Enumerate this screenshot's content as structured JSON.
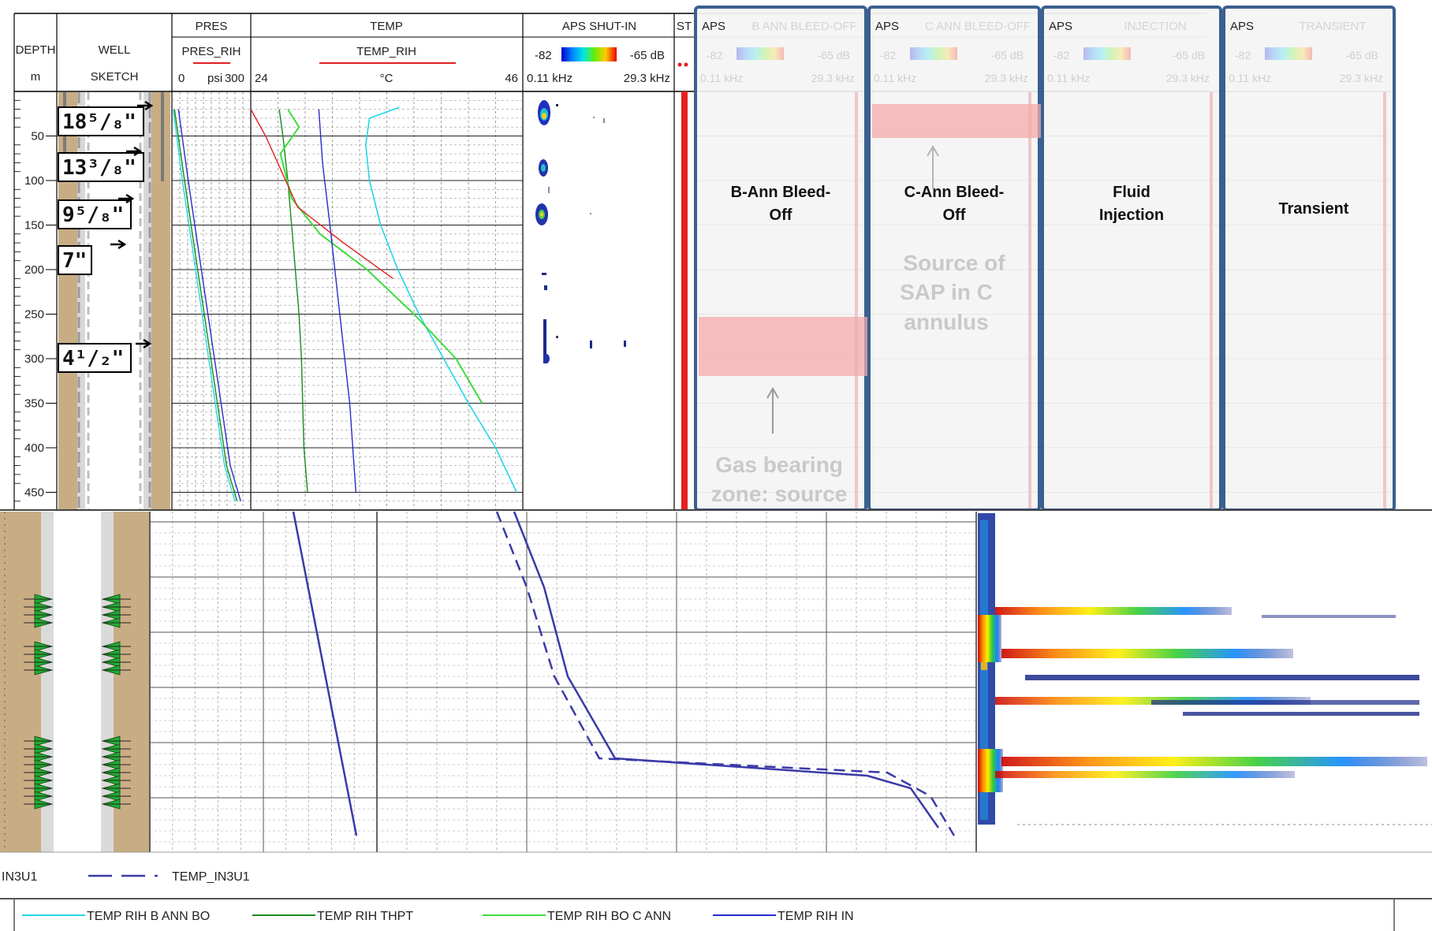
{
  "colors": {
    "cyan": "#22d6e6",
    "dark_green": "#1a8a1a",
    "bright_green": "#3ddc3d",
    "blue": "#2a2ad0",
    "navy": "#3a3aa8",
    "red": "#e02020",
    "overlay_border": "#3b5f8f",
    "sand": "#c8ad84"
  },
  "track_headers": {
    "depth": {
      "title": "DEPTH",
      "unit": "m"
    },
    "well": {
      "title": "WELL",
      "sub": "SKETCH"
    },
    "pres": {
      "title": "PRES",
      "curve": "PRES_RIH",
      "min": "0",
      "unit": "psi",
      "max": "300"
    },
    "temp": {
      "title": "TEMP",
      "curve": "TEMP_RIH",
      "min": "24",
      "unit": "°C",
      "max": "46"
    },
    "aps": {
      "title": "APS SHUT-IN",
      "db_min": "-82",
      "db_max": "-65 dB",
      "f_min": "0.11 kHz",
      "f_max": "29.3 kHz"
    },
    "st": {
      "title": "ST"
    }
  },
  "depth_ticks": [
    "50",
    "100",
    "150",
    "200",
    "250",
    "300",
    "350",
    "400",
    "450"
  ],
  "casings": [
    {
      "label": "18⁵/₈\""
    },
    {
      "label": "13³/₈\""
    },
    {
      "label": "9⁵/₈\""
    },
    {
      "label": "7\""
    },
    {
      "label": "4¹/₂\""
    }
  ],
  "overlays": [
    {
      "aps_label": "APS",
      "ghost_title": "B ANN BLEED-OFF",
      "title_line1": "B-Ann Bleed-",
      "title_line2": "Off",
      "faded_line1": "Gas bearing",
      "faded_line2": "zone: source"
    },
    {
      "aps_label": "APS",
      "ghost_title": "C ANN BLEED-OFF",
      "title_line1": "C-Ann Bleed-",
      "title_line2": "Off",
      "faded_line1": "Source of",
      "faded_line2": "SAP in C",
      "faded_line3": "annulus"
    },
    {
      "aps_label": "APS",
      "ghost_title": "INJECTION",
      "title_line1": "Fluid",
      "title_line2": "Injection"
    },
    {
      "aps_label": "APS",
      "ghost_title": "TRANSIENT",
      "title_line1": "Transient"
    }
  ],
  "ghost_scale": {
    "db_min": "-82",
    "db_max": "-65 dB",
    "f_min": "0.11 kHz",
    "f_max": "29.3 kHz"
  },
  "lower_legend_fragment": "IN3U1",
  "lower_legend_curve": "TEMP_IN3U1",
  "legend": [
    {
      "name": "TEMP RIH B ANN BO",
      "color": "#22d6e6"
    },
    {
      "name": "TEMP RIH THPT",
      "color": "#1a8a1a"
    },
    {
      "name": "TEMP RIH BO C ANN",
      "color": "#3ddc3d"
    },
    {
      "name": "TEMP RIH IN",
      "color": "#2a2ad0"
    }
  ],
  "chart_data": [
    {
      "type": "line",
      "title": "TEMP",
      "xlabel": "TEMP_RIH (°C)",
      "ylabel": "DEPTH (m)",
      "xlim": [
        24,
        46
      ],
      "ylim": [
        0,
        460
      ],
      "series": [
        {
          "name": "TEMP RIH B ANN BO",
          "x": [
            36.0,
            33.6,
            33.3,
            33.6,
            34.5,
            35.9,
            37.6,
            39.6,
            41.6,
            43.8,
            45.5
          ],
          "y": [
            18,
            30,
            60,
            100,
            150,
            200,
            250,
            300,
            350,
            400,
            450
          ]
        },
        {
          "name": "TEMP RIH THPT",
          "x": [
            26.3,
            26.6,
            27.0,
            27.3,
            27.6,
            27.9,
            28.1,
            28.3,
            28.6
          ],
          "y": [
            20,
            50,
            100,
            150,
            200,
            250,
            300,
            400,
            450
          ]
        },
        {
          "name": "TEMP RIH BO C ANN",
          "x": [
            27.0,
            27.9,
            26.4,
            27.3,
            29.6,
            33.4,
            37.2,
            40.6,
            42.7
          ],
          "y": [
            20,
            40,
            70,
            120,
            160,
            200,
            250,
            300,
            350
          ]
        },
        {
          "name": "TEMP RIH IN",
          "x": [
            29.5,
            29.8,
            30.4,
            31.2,
            32.0,
            32.5
          ],
          "y": [
            20,
            80,
            150,
            250,
            350,
            450
          ]
        },
        {
          "name": "TEMP_RIH",
          "x": [
            24.0,
            25.2,
            26.5,
            27.8,
            31.5,
            35.5
          ],
          "y": [
            20,
            50,
            90,
            130,
            170,
            210
          ]
        }
      ]
    },
    {
      "type": "line",
      "title": "PRES",
      "xlabel": "PRES_RIH (psi)",
      "ylabel": "DEPTH (m)",
      "xlim": [
        0,
        300
      ],
      "ylim": [
        0,
        460
      ],
      "series": [
        {
          "name": "PRES cyan",
          "x": [
            5,
            40,
            80,
            120,
            160,
            200,
            240
          ],
          "y": [
            20,
            100,
            180,
            260,
            340,
            420,
            460
          ]
        },
        {
          "name": "PRES green",
          "x": [
            10,
            48,
            88,
            128,
            168,
            208,
            248
          ],
          "y": [
            20,
            100,
            180,
            260,
            340,
            420,
            460
          ]
        },
        {
          "name": "PRES blue",
          "x": [
            25,
            62,
            102,
            142,
            182,
            222,
            262
          ],
          "y": [
            20,
            100,
            180,
            260,
            340,
            420,
            460
          ]
        }
      ]
    }
  ]
}
